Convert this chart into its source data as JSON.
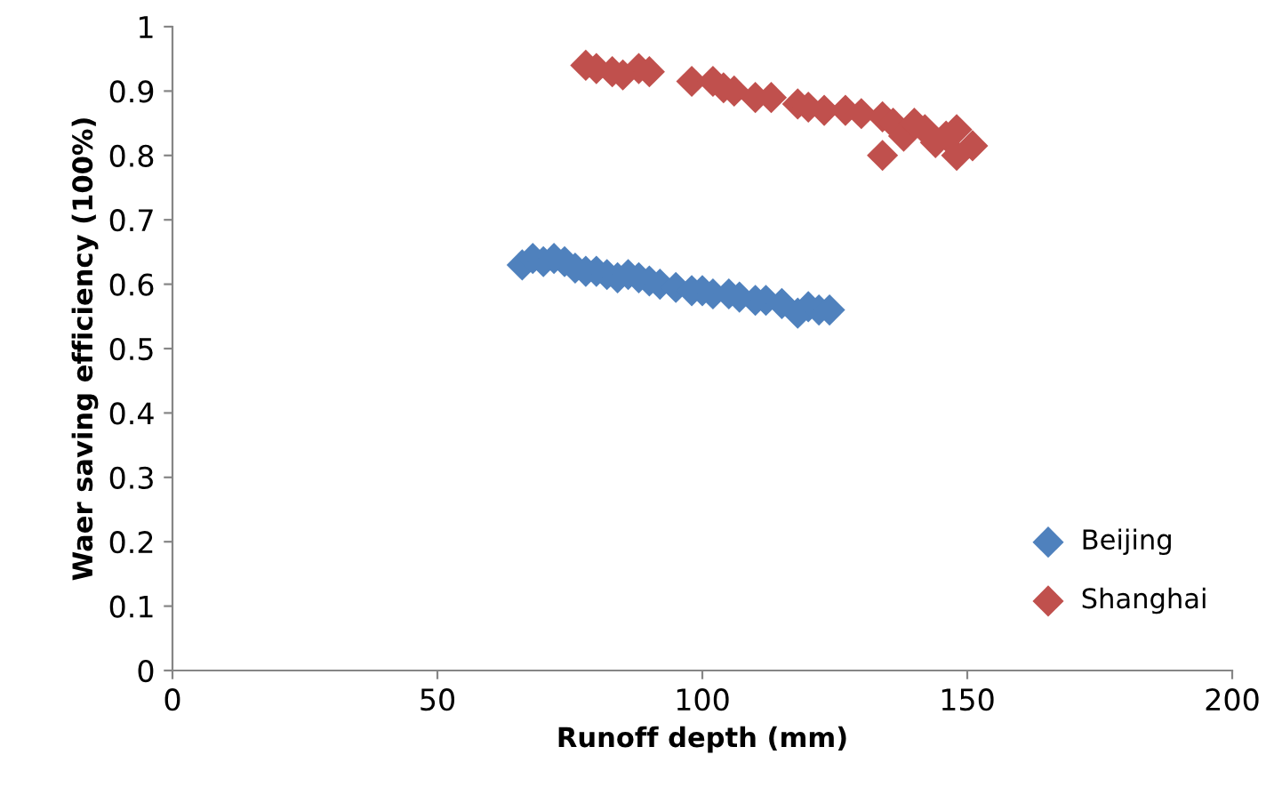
{
  "chart_data": {
    "type": "scatter",
    "xlabel": "Runoff depth (mm)",
    "ylabel": "Waer saving efficiency (100%)",
    "xlim": [
      0,
      200
    ],
    "xticks": [
      0,
      50,
      100,
      150,
      200
    ],
    "ylim": [
      0,
      1
    ],
    "yticks": [
      0,
      0.1,
      0.2,
      0.3,
      0.4,
      0.5,
      0.6,
      0.7,
      0.8,
      0.9,
      1
    ],
    "grid": false,
    "legend": "bottom right",
    "marker": "diamond",
    "series": [
      {
        "name": "Beijing",
        "color": "#4f81bd",
        "x": [
          66,
          68,
          70,
          72,
          74,
          76,
          78,
          80,
          82,
          84,
          86,
          88,
          90,
          92,
          95,
          98,
          100,
          102,
          105,
          107,
          110,
          112,
          115,
          118,
          120,
          122,
          124
        ],
        "values": [
          0.63,
          0.64,
          0.635,
          0.64,
          0.635,
          0.625,
          0.62,
          0.62,
          0.615,
          0.61,
          0.615,
          0.61,
          0.605,
          0.6,
          0.595,
          0.59,
          0.59,
          0.585,
          0.585,
          0.58,
          0.575,
          0.575,
          0.57,
          0.555,
          0.565,
          0.56,
          0.56
        ]
      },
      {
        "name": "Shanghai",
        "color": "#c0504d",
        "x": [
          78,
          80,
          83,
          85,
          88,
          90,
          98,
          102,
          104,
          106,
          110,
          113,
          118,
          120,
          123,
          127,
          130,
          134,
          136,
          138,
          140,
          142,
          144,
          146,
          148,
          151,
          148,
          134
        ],
        "values": [
          0.94,
          0.935,
          0.93,
          0.925,
          0.935,
          0.93,
          0.915,
          0.915,
          0.905,
          0.9,
          0.89,
          0.89,
          0.88,
          0.875,
          0.87,
          0.87,
          0.865,
          0.86,
          0.85,
          0.83,
          0.85,
          0.84,
          0.82,
          0.83,
          0.84,
          0.815,
          0.8,
          0.8
        ]
      }
    ]
  }
}
